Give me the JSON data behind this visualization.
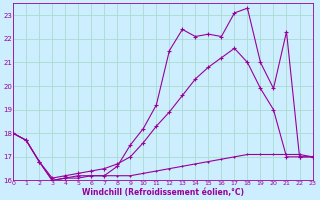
{
  "xlabel": "Windchill (Refroidissement éolien,°C)",
  "bg_color": "#cceeff",
  "grid_color": "#aaddcc",
  "line_color": "#990099",
  "xmin": 0,
  "xmax": 23,
  "ymin": 16,
  "ymax": 23.5,
  "yticks": [
    16,
    17,
    18,
    19,
    20,
    21,
    22,
    23
  ],
  "xticks": [
    0,
    1,
    2,
    3,
    4,
    5,
    6,
    7,
    8,
    9,
    10,
    11,
    12,
    13,
    14,
    15,
    16,
    17,
    18,
    19,
    20,
    21,
    22,
    23
  ],
  "line1_x": [
    0,
    1,
    2,
    3,
    4,
    5,
    6,
    7,
    8,
    9,
    10,
    11,
    12,
    13,
    14,
    15,
    16,
    17,
    18,
    19,
    20,
    21,
    22,
    23
  ],
  "line1_y": [
    18.0,
    17.7,
    16.8,
    16.0,
    16.1,
    16.2,
    16.2,
    16.2,
    16.6,
    17.5,
    18.2,
    19.2,
    21.5,
    22.4,
    22.1,
    22.2,
    22.1,
    23.1,
    23.3,
    21.0,
    19.9,
    22.3,
    17.0,
    17.0
  ],
  "line2_x": [
    0,
    1,
    2,
    3,
    4,
    5,
    6,
    7,
    8,
    9,
    10,
    11,
    12,
    13,
    14,
    15,
    16,
    17,
    18,
    19,
    20,
    21,
    22,
    23
  ],
  "line2_y": [
    18.0,
    17.7,
    16.8,
    16.1,
    16.2,
    16.3,
    16.4,
    16.5,
    16.7,
    17.0,
    17.6,
    18.3,
    18.9,
    19.6,
    20.3,
    20.8,
    21.2,
    21.6,
    21.0,
    19.9,
    19.0,
    17.0,
    17.0,
    17.0
  ],
  "line3_x": [
    0,
    1,
    2,
    3,
    4,
    5,
    6,
    7,
    8,
    9,
    10,
    11,
    12,
    13,
    14,
    15,
    16,
    17,
    18,
    19,
    20,
    21,
    22,
    23
  ],
  "line3_y": [
    18.0,
    17.7,
    16.8,
    16.0,
    16.1,
    16.1,
    16.2,
    16.2,
    16.2,
    16.2,
    16.3,
    16.4,
    16.5,
    16.6,
    16.7,
    16.8,
    16.9,
    17.0,
    17.1,
    17.1,
    17.1,
    17.1,
    17.1,
    17.0
  ]
}
